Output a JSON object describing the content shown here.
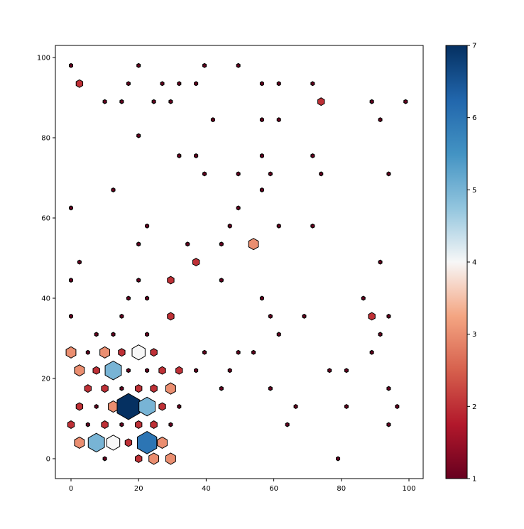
{
  "chart_data": {
    "type": "hexbin",
    "xlim": [
      -5,
      104
    ],
    "ylim": [
      -5,
      103
    ],
    "xticks": [
      "0",
      "20",
      "40",
      "60",
      "80",
      "100"
    ],
    "yticks": [
      "0",
      "20",
      "40",
      "60",
      "80",
      "100"
    ],
    "colorbar": {
      "range": [
        1,
        7
      ],
      "ticks": [
        "1",
        "2",
        "3",
        "4",
        "5",
        "6",
        "7"
      ],
      "colormap": "RdBu"
    },
    "grid": false,
    "bins": [
      {
        "x": 0,
        "y": 98,
        "count": 1
      },
      {
        "x": 20,
        "y": 98,
        "count": 1
      },
      {
        "x": 39.5,
        "y": 98,
        "count": 1
      },
      {
        "x": 49.5,
        "y": 98,
        "count": 1
      },
      {
        "x": 2.5,
        "y": 93.5,
        "count": 2
      },
      {
        "x": 17,
        "y": 93.5,
        "count": 1
      },
      {
        "x": 27,
        "y": 93.5,
        "count": 1
      },
      {
        "x": 32,
        "y": 93.5,
        "count": 1
      },
      {
        "x": 37,
        "y": 93.5,
        "count": 1
      },
      {
        "x": 56.5,
        "y": 93.5,
        "count": 1
      },
      {
        "x": 61.5,
        "y": 93.5,
        "count": 1
      },
      {
        "x": 71.5,
        "y": 93.5,
        "count": 1
      },
      {
        "x": 10,
        "y": 89,
        "count": 1
      },
      {
        "x": 15,
        "y": 89,
        "count": 1
      },
      {
        "x": 24.5,
        "y": 89,
        "count": 1
      },
      {
        "x": 29.5,
        "y": 89,
        "count": 1
      },
      {
        "x": 74,
        "y": 89,
        "count": 2
      },
      {
        "x": 89,
        "y": 89,
        "count": 1
      },
      {
        "x": 99,
        "y": 89,
        "count": 1
      },
      {
        "x": 42,
        "y": 84.5,
        "count": 1
      },
      {
        "x": 56.5,
        "y": 84.5,
        "count": 1
      },
      {
        "x": 61.5,
        "y": 84.5,
        "count": 1
      },
      {
        "x": 91.5,
        "y": 84.5,
        "count": 1
      },
      {
        "x": 20,
        "y": 80.5,
        "count": 1
      },
      {
        "x": 32,
        "y": 75.5,
        "count": 1
      },
      {
        "x": 37,
        "y": 75.5,
        "count": 1
      },
      {
        "x": 56.5,
        "y": 75.5,
        "count": 1
      },
      {
        "x": 71.5,
        "y": 75.5,
        "count": 1
      },
      {
        "x": 39.5,
        "y": 71,
        "count": 1
      },
      {
        "x": 49.5,
        "y": 71,
        "count": 1
      },
      {
        "x": 59,
        "y": 71,
        "count": 1
      },
      {
        "x": 74,
        "y": 71,
        "count": 1
      },
      {
        "x": 94,
        "y": 71,
        "count": 1
      },
      {
        "x": 12.5,
        "y": 67,
        "count": 1
      },
      {
        "x": 56.5,
        "y": 67,
        "count": 1
      },
      {
        "x": 0,
        "y": 62.5,
        "count": 1
      },
      {
        "x": 49.5,
        "y": 62.5,
        "count": 1
      },
      {
        "x": 22.5,
        "y": 58,
        "count": 1
      },
      {
        "x": 47,
        "y": 58,
        "count": 1
      },
      {
        "x": 61.5,
        "y": 58,
        "count": 1
      },
      {
        "x": 71.5,
        "y": 58,
        "count": 1
      },
      {
        "x": 20,
        "y": 53.5,
        "count": 1
      },
      {
        "x": 34.5,
        "y": 53.5,
        "count": 1
      },
      {
        "x": 44.5,
        "y": 53.5,
        "count": 1
      },
      {
        "x": 54,
        "y": 53.5,
        "count": 3
      },
      {
        "x": 2.5,
        "y": 49,
        "count": 1
      },
      {
        "x": 37,
        "y": 49,
        "count": 2
      },
      {
        "x": 91.5,
        "y": 49,
        "count": 1
      },
      {
        "x": 0,
        "y": 44.5,
        "count": 1
      },
      {
        "x": 20,
        "y": 44.5,
        "count": 1
      },
      {
        "x": 29.5,
        "y": 44.5,
        "count": 2
      },
      {
        "x": 44.5,
        "y": 44.5,
        "count": 1
      },
      {
        "x": 17,
        "y": 40,
        "count": 1
      },
      {
        "x": 22.5,
        "y": 40,
        "count": 1
      },
      {
        "x": 56.5,
        "y": 40,
        "count": 1
      },
      {
        "x": 86.5,
        "y": 40,
        "count": 1
      },
      {
        "x": 0,
        "y": 35.5,
        "count": 1
      },
      {
        "x": 15,
        "y": 35.5,
        "count": 1
      },
      {
        "x": 29.5,
        "y": 35.5,
        "count": 2
      },
      {
        "x": 59,
        "y": 35.5,
        "count": 1
      },
      {
        "x": 69,
        "y": 35.5,
        "count": 1
      },
      {
        "x": 89,
        "y": 35.5,
        "count": 2
      },
      {
        "x": 94,
        "y": 35.5,
        "count": 1
      },
      {
        "x": 7.5,
        "y": 31,
        "count": 1
      },
      {
        "x": 12.5,
        "y": 31,
        "count": 1
      },
      {
        "x": 22.5,
        "y": 31,
        "count": 1
      },
      {
        "x": 61.5,
        "y": 31,
        "count": 1
      },
      {
        "x": 91.5,
        "y": 31,
        "count": 1
      },
      {
        "x": 0,
        "y": 26.5,
        "count": 3
      },
      {
        "x": 5,
        "y": 26.5,
        "count": 1
      },
      {
        "x": 10,
        "y": 26.5,
        "count": 3
      },
      {
        "x": 15,
        "y": 26.5,
        "count": 2
      },
      {
        "x": 20,
        "y": 26.5,
        "count": 4
      },
      {
        "x": 24.5,
        "y": 26.5,
        "count": 2
      },
      {
        "x": 39.5,
        "y": 26.5,
        "count": 1
      },
      {
        "x": 49.5,
        "y": 26.5,
        "count": 1
      },
      {
        "x": 54,
        "y": 26.5,
        "count": 1
      },
      {
        "x": 89,
        "y": 26.5,
        "count": 1
      },
      {
        "x": 2.5,
        "y": 22,
        "count": 3
      },
      {
        "x": 7.5,
        "y": 22,
        "count": 2
      },
      {
        "x": 12.5,
        "y": 22,
        "count": 5
      },
      {
        "x": 17,
        "y": 22,
        "count": 1
      },
      {
        "x": 22.5,
        "y": 22,
        "count": 1
      },
      {
        "x": 27,
        "y": 22,
        "count": 2
      },
      {
        "x": 32,
        "y": 22,
        "count": 2
      },
      {
        "x": 37,
        "y": 22,
        "count": 1
      },
      {
        "x": 47,
        "y": 22,
        "count": 1
      },
      {
        "x": 76.5,
        "y": 22,
        "count": 1
      },
      {
        "x": 81.5,
        "y": 22,
        "count": 1
      },
      {
        "x": 5,
        "y": 17.5,
        "count": 2
      },
      {
        "x": 10,
        "y": 17.5,
        "count": 2
      },
      {
        "x": 15,
        "y": 17.5,
        "count": 1
      },
      {
        "x": 20,
        "y": 17.5,
        "count": 2
      },
      {
        "x": 24.5,
        "y": 17.5,
        "count": 2
      },
      {
        "x": 29.5,
        "y": 17.5,
        "count": 3
      },
      {
        "x": 44.5,
        "y": 17.5,
        "count": 1
      },
      {
        "x": 59,
        "y": 17.5,
        "count": 1
      },
      {
        "x": 94,
        "y": 17.5,
        "count": 1
      },
      {
        "x": 2.5,
        "y": 13,
        "count": 2
      },
      {
        "x": 7.5,
        "y": 13,
        "count": 1
      },
      {
        "x": 12.5,
        "y": 13,
        "count": 3
      },
      {
        "x": 17,
        "y": 13,
        "count": 7
      },
      {
        "x": 22.5,
        "y": 13,
        "count": 5
      },
      {
        "x": 27,
        "y": 13,
        "count": 2
      },
      {
        "x": 32,
        "y": 13,
        "count": 1
      },
      {
        "x": 66.5,
        "y": 13,
        "count": 1
      },
      {
        "x": 81.5,
        "y": 13,
        "count": 1
      },
      {
        "x": 96.5,
        "y": 13,
        "count": 1
      },
      {
        "x": 0,
        "y": 8.5,
        "count": 2
      },
      {
        "x": 5,
        "y": 8.5,
        "count": 1
      },
      {
        "x": 10,
        "y": 8.5,
        "count": 2
      },
      {
        "x": 15,
        "y": 8.5,
        "count": 1
      },
      {
        "x": 20,
        "y": 8.5,
        "count": 2
      },
      {
        "x": 24.5,
        "y": 8.5,
        "count": 2
      },
      {
        "x": 29.5,
        "y": 8.5,
        "count": 1
      },
      {
        "x": 64,
        "y": 8.5,
        "count": 1
      },
      {
        "x": 94,
        "y": 8.5,
        "count": 1
      },
      {
        "x": 2.5,
        "y": 4,
        "count": 3
      },
      {
        "x": 7.5,
        "y": 4,
        "count": 5
      },
      {
        "x": 12.5,
        "y": 4,
        "count": 4
      },
      {
        "x": 17,
        "y": 4,
        "count": 2
      },
      {
        "x": 22.5,
        "y": 4,
        "count": 6
      },
      {
        "x": 27,
        "y": 4,
        "count": 3
      },
      {
        "x": 10,
        "y": 0,
        "count": 1
      },
      {
        "x": 20,
        "y": 0,
        "count": 2
      },
      {
        "x": 24.5,
        "y": 0,
        "count": 3
      },
      {
        "x": 29.5,
        "y": 0,
        "count": 3
      },
      {
        "x": 79,
        "y": 0,
        "count": 1
      }
    ]
  }
}
